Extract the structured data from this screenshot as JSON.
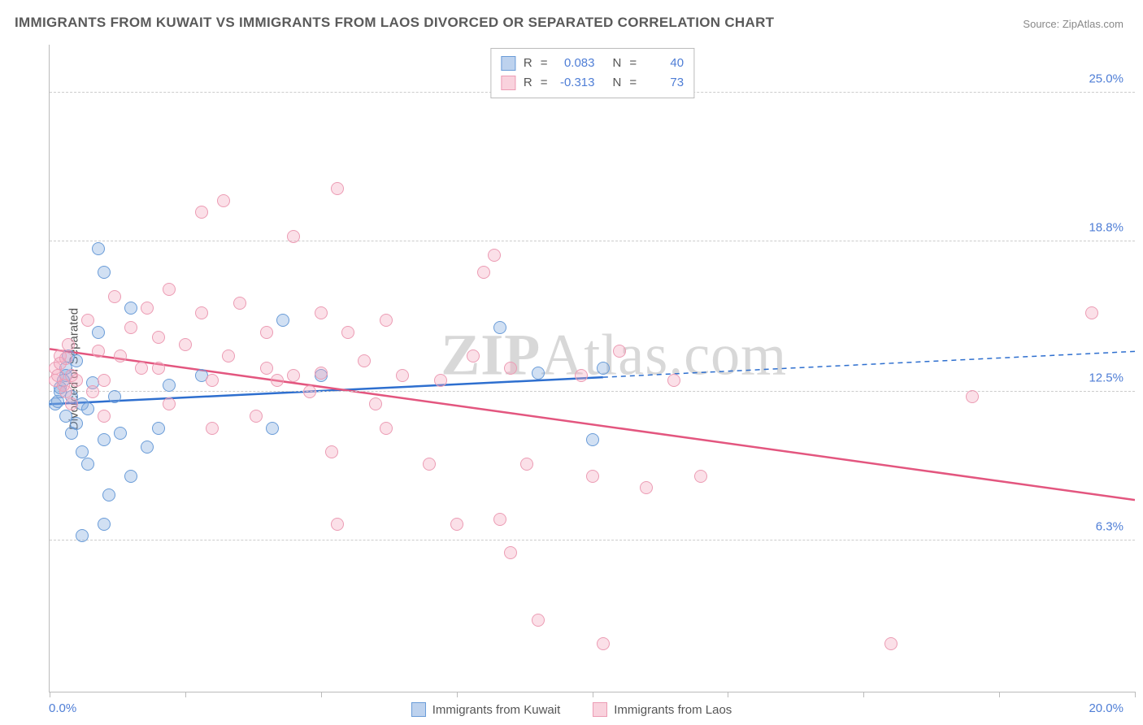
{
  "title": "IMMIGRANTS FROM KUWAIT VS IMMIGRANTS FROM LAOS DIVORCED OR SEPARATED CORRELATION CHART",
  "source_label": "Source:",
  "source_name": "ZipAtlas.com",
  "y_axis_label": "Divorced or Separated",
  "watermark_pre": "ZIP",
  "watermark_post": "Atlas.com",
  "chart": {
    "type": "scatter",
    "xlim": [
      0.0,
      20.0
    ],
    "ylim": [
      0.0,
      27.0
    ],
    "x_ticks": [
      0.0,
      2.5,
      5.0,
      7.5,
      10.0,
      12.5,
      15.0,
      17.5,
      20.0
    ],
    "y_gridlines": [
      6.3,
      12.5,
      18.8,
      25.0
    ],
    "y_tick_labels": [
      "6.3%",
      "12.5%",
      "18.8%",
      "25.0%"
    ],
    "x_min_label": "0.0%",
    "x_max_label": "20.0%",
    "background_color": "#ffffff",
    "grid_color": "#cccccc",
    "axis_color": "#bbbbbb",
    "tick_label_color": "#4f7ed6"
  },
  "series": [
    {
      "name": "Immigrants from Kuwait",
      "color_fill": "rgba(124,166,222,0.35)",
      "color_stroke": "#6a9cd8",
      "marker_radius": 8,
      "R": "0.083",
      "N": "40",
      "trend": {
        "y_at_xmin": 12.0,
        "y_at_xmax": 14.2,
        "solid_until_x": 10.2,
        "color": "#2e6fcf",
        "width": 2.5
      },
      "points": [
        [
          0.1,
          12.0
        ],
        [
          0.15,
          12.1
        ],
        [
          0.2,
          12.5
        ],
        [
          0.2,
          12.7
        ],
        [
          0.25,
          13.0
        ],
        [
          0.3,
          13.5
        ],
        [
          0.3,
          11.5
        ],
        [
          0.35,
          14.0
        ],
        [
          0.4,
          12.3
        ],
        [
          0.4,
          10.8
        ],
        [
          0.5,
          11.2
        ],
        [
          0.5,
          13.8
        ],
        [
          0.6,
          12.0
        ],
        [
          0.6,
          10.0
        ],
        [
          0.7,
          9.5
        ],
        [
          0.7,
          11.8
        ],
        [
          0.8,
          12.9
        ],
        [
          0.9,
          18.5
        ],
        [
          0.9,
          15.0
        ],
        [
          1.0,
          17.5
        ],
        [
          1.0,
          10.5
        ],
        [
          1.1,
          8.2
        ],
        [
          1.2,
          12.3
        ],
        [
          1.3,
          10.8
        ],
        [
          1.5,
          16.0
        ],
        [
          1.5,
          9.0
        ],
        [
          1.8,
          10.2
        ],
        [
          2.0,
          11.0
        ],
        [
          2.2,
          12.8
        ],
        [
          0.6,
          6.5
        ],
        [
          1.0,
          7.0
        ],
        [
          2.8,
          13.2
        ],
        [
          4.1,
          11.0
        ],
        [
          4.3,
          15.5
        ],
        [
          5.0,
          13.2
        ],
        [
          8.3,
          15.2
        ],
        [
          9.0,
          13.3
        ],
        [
          10.0,
          10.5
        ],
        [
          10.2,
          13.5
        ],
        [
          0.3,
          13.2
        ]
      ]
    },
    {
      "name": "Immigrants from Laos",
      "color_fill": "rgba(244,166,188,0.35)",
      "color_stroke": "#ec9cb4",
      "marker_radius": 8,
      "R": "-0.313",
      "N": "73",
      "trend": {
        "y_at_xmin": 14.3,
        "y_at_xmax": 8.0,
        "solid_until_x": 20.0,
        "color": "#e3567f",
        "width": 2.5
      },
      "points": [
        [
          0.1,
          13.0
        ],
        [
          0.1,
          13.5
        ],
        [
          0.15,
          13.2
        ],
        [
          0.2,
          14.0
        ],
        [
          0.2,
          13.7
        ],
        [
          0.25,
          12.8
        ],
        [
          0.3,
          13.9
        ],
        [
          0.3,
          12.5
        ],
        [
          0.35,
          14.5
        ],
        [
          0.4,
          13.2
        ],
        [
          0.4,
          12.0
        ],
        [
          0.5,
          13.0
        ],
        [
          0.7,
          15.5
        ],
        [
          0.8,
          12.5
        ],
        [
          0.9,
          14.2
        ],
        [
          1.0,
          13.0
        ],
        [
          1.2,
          16.5
        ],
        [
          1.3,
          14.0
        ],
        [
          1.5,
          15.2
        ],
        [
          1.7,
          13.5
        ],
        [
          1.8,
          16.0
        ],
        [
          2.0,
          14.8
        ],
        [
          2.0,
          13.5
        ],
        [
          2.2,
          12.0
        ],
        [
          2.2,
          16.8
        ],
        [
          2.5,
          14.5
        ],
        [
          2.8,
          20.0
        ],
        [
          2.8,
          15.8
        ],
        [
          3.0,
          13.0
        ],
        [
          3.0,
          11.0
        ],
        [
          3.2,
          20.5
        ],
        [
          3.3,
          14.0
        ],
        [
          3.5,
          16.2
        ],
        [
          3.8,
          11.5
        ],
        [
          4.0,
          15.0
        ],
        [
          4.0,
          13.5
        ],
        [
          4.2,
          13.0
        ],
        [
          4.5,
          19.0
        ],
        [
          4.8,
          12.5
        ],
        [
          5.0,
          15.8
        ],
        [
          5.0,
          13.3
        ],
        [
          5.2,
          10.0
        ],
        [
          5.3,
          21.0
        ],
        [
          5.3,
          7.0
        ],
        [
          5.5,
          15.0
        ],
        [
          5.8,
          13.8
        ],
        [
          6.0,
          12.0
        ],
        [
          6.2,
          11.0
        ],
        [
          6.2,
          15.5
        ],
        [
          6.5,
          13.2
        ],
        [
          7.0,
          9.5
        ],
        [
          7.2,
          13.0
        ],
        [
          7.5,
          7.0
        ],
        [
          7.8,
          14.0
        ],
        [
          8.0,
          17.5
        ],
        [
          8.2,
          18.2
        ],
        [
          8.3,
          7.2
        ],
        [
          8.5,
          5.8
        ],
        [
          8.5,
          13.5
        ],
        [
          8.8,
          9.5
        ],
        [
          9.0,
          3.0
        ],
        [
          9.8,
          13.2
        ],
        [
          10.0,
          9.0
        ],
        [
          10.2,
          2.0
        ],
        [
          10.5,
          14.2
        ],
        [
          11.0,
          8.5
        ],
        [
          11.5,
          13.0
        ],
        [
          12.0,
          9.0
        ],
        [
          15.5,
          2.0
        ],
        [
          17.0,
          12.3
        ],
        [
          19.2,
          15.8
        ],
        [
          4.5,
          13.2
        ],
        [
          1.0,
          11.5
        ]
      ]
    }
  ],
  "stats_labels": {
    "R": "R",
    "N": "N",
    "eq": "="
  },
  "legend_labels": {
    "kuwait": "Immigrants from Kuwait",
    "laos": "Immigrants from Laos"
  }
}
